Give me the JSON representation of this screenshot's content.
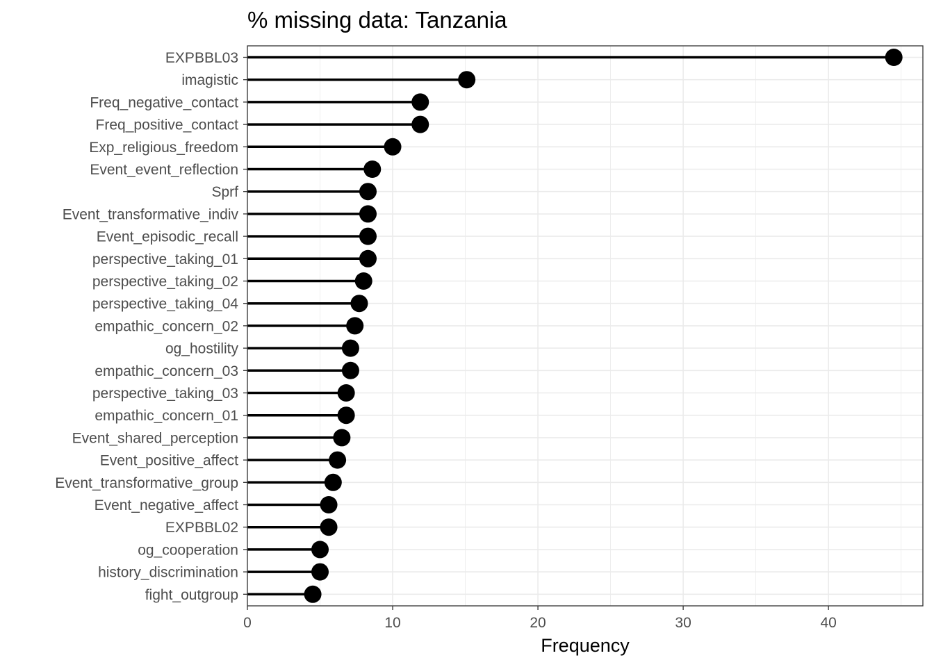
{
  "chart_data": {
    "type": "lollipop",
    "title": "% missing data: Tanzania",
    "xlabel": "Frequency",
    "ylabel": "",
    "xlim": [
      0,
      46.5
    ],
    "x_ticks": [
      0,
      10,
      20,
      30,
      40
    ],
    "grid": true,
    "theme": "bw",
    "colors": {
      "stem": "#000000",
      "point": "#000000",
      "grid": "#ebebeb",
      "panel_border": "#333333",
      "tick_text": "#4d4d4d"
    },
    "categories": [
      "EXPBBL03",
      "imagistic",
      "Freq_negative_contact",
      "Freq_positive_contact",
      "Exp_religious_freedom",
      "Event_event_reflection",
      "Sprf",
      "Event_transformative_indiv",
      "Event_episodic_recall",
      "perspective_taking_01",
      "perspective_taking_02",
      "perspective_taking_04",
      "empathic_concern_02",
      "og_hostility",
      "empathic_concern_03",
      "perspective_taking_03",
      "empathic_concern_01",
      "Event_shared_perception",
      "Event_positive_affect",
      "Event_transformative_group",
      "Event_negative_affect",
      "EXPBBL02",
      "og_cooperation",
      "history_discrimination",
      "fight_outgroup"
    ],
    "values": [
      44.5,
      15.1,
      11.9,
      11.9,
      10.0,
      8.6,
      8.3,
      8.3,
      8.3,
      8.3,
      8.0,
      7.7,
      7.4,
      7.1,
      7.1,
      6.8,
      6.8,
      6.5,
      6.2,
      5.9,
      5.6,
      5.6,
      5.0,
      5.0,
      4.5
    ]
  }
}
